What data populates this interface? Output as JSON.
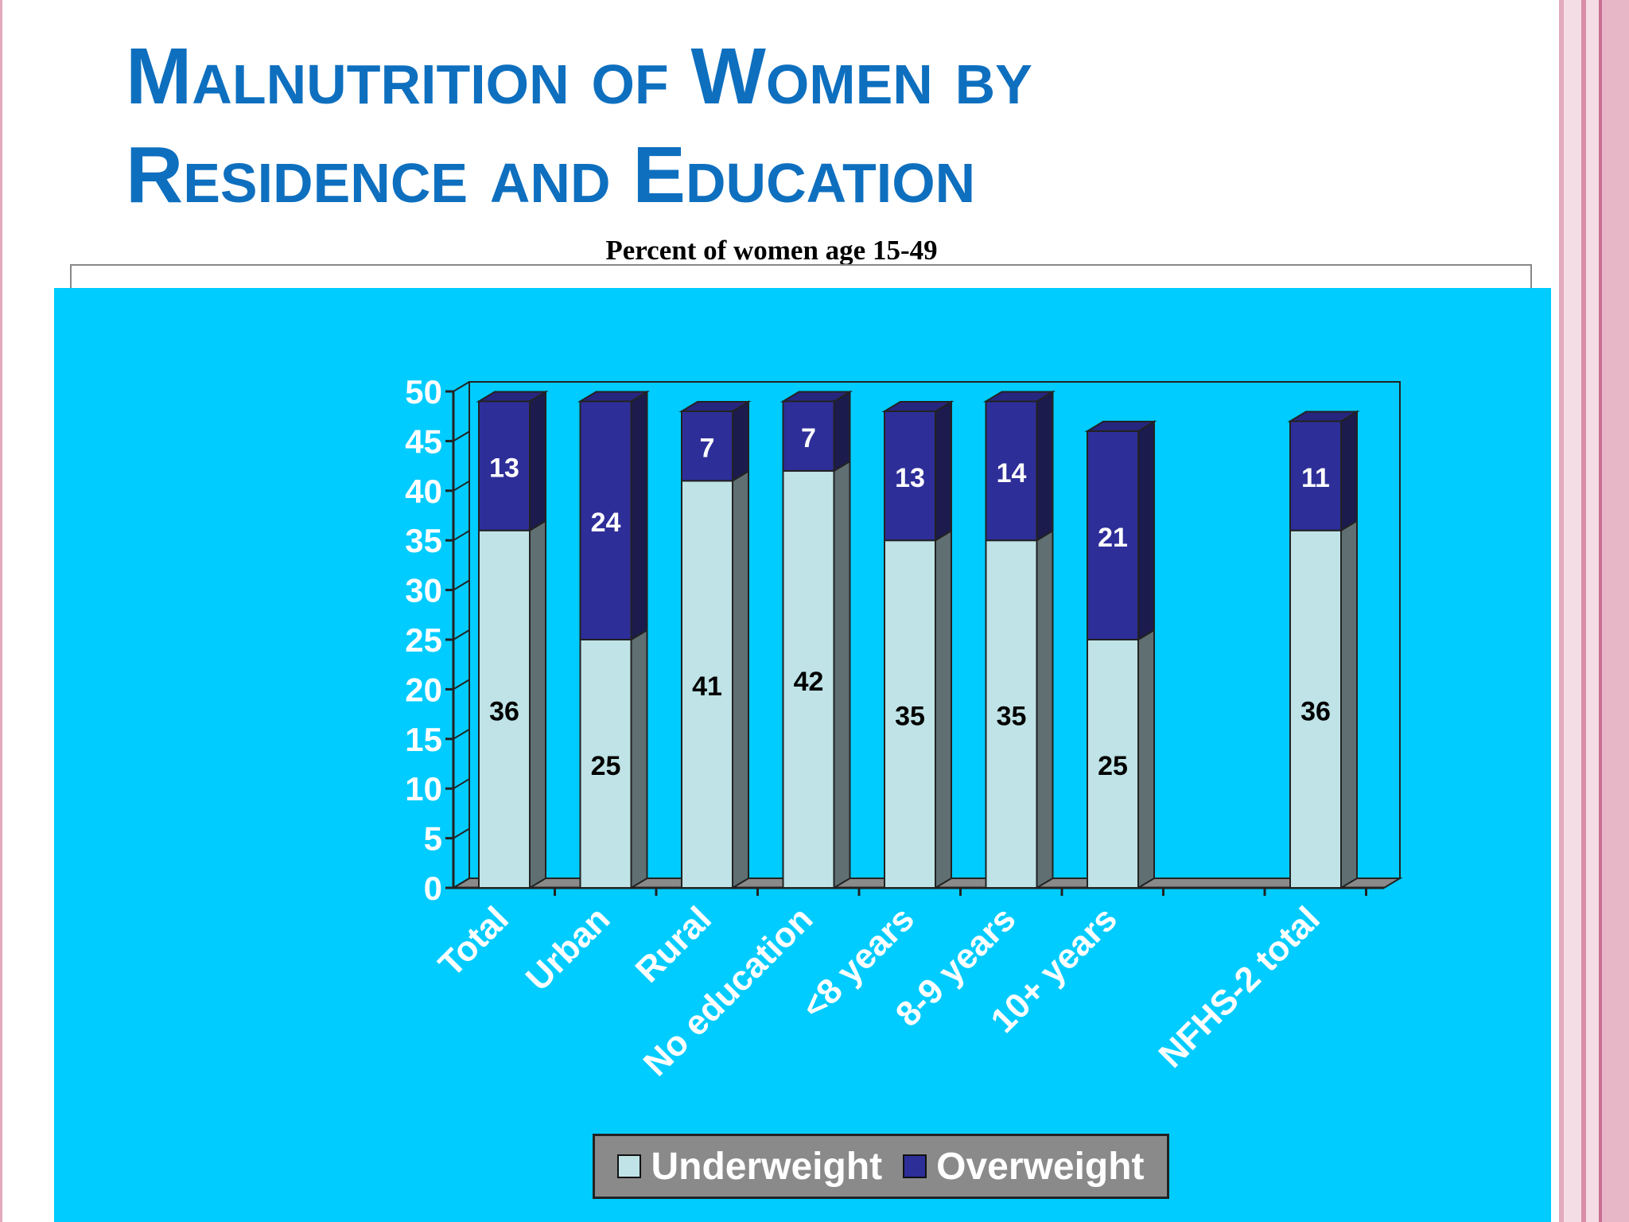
{
  "slide": {
    "title_line1": "Malnutrition of Women by",
    "title_line2": "Residence and Education"
  },
  "chart_data": {
    "type": "bar",
    "stacked": true,
    "three_d": true,
    "title": "Percent of women age 15-49",
    "xlabel": "",
    "ylabel": "",
    "ylim": [
      0,
      50
    ],
    "yticks": [
      0,
      5,
      10,
      15,
      20,
      25,
      30,
      35,
      40,
      45,
      50
    ],
    "categories": [
      "Total",
      "Urban",
      "Rural",
      "No education",
      "<8 years",
      "8-9 years",
      "10+ years",
      "",
      "NFHS-2 total"
    ],
    "series": [
      {
        "name": "Underweight",
        "values": [
          36,
          25,
          41,
          42,
          35,
          35,
          25,
          null,
          36
        ],
        "color": "#BFE3E6"
      },
      {
        "name": "Overweight",
        "values": [
          13,
          24,
          7,
          7,
          13,
          14,
          21,
          null,
          11
        ],
        "color": "#2E2E99"
      }
    ],
    "grid": false,
    "legend_position": "bottom",
    "colors": {
      "panel_background": "#00CCFF",
      "axis_text": "#FFFFFF",
      "underweight_label": "#000000",
      "overweight_label": "#FFFFFF"
    }
  }
}
